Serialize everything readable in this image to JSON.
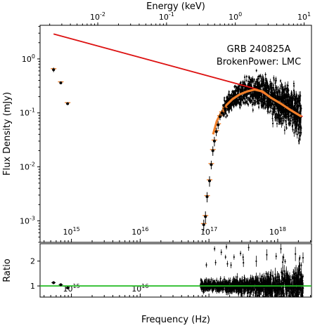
{
  "chart_data": [
    {
      "type": "scatter",
      "annotation": [
        "GRB 240825A",
        "BrokenPower: LMC"
      ],
      "xlabel": "",
      "ylabel": "Flux Density (mJy)",
      "top_xlabel": "Energy (keV)",
      "x_scale": "log",
      "y_scale": "log",
      "xlim": [
        350000000000000.0,
        3.1e+18
      ],
      "ylim": [
        0.0004,
        4.2
      ],
      "top_xlim": [
        0.00145,
        12.8
      ],
      "x_ticks": [
        {
          "value": 1000000000000000.0,
          "label": "10^15"
        },
        {
          "value": 1e+16,
          "label": "10^16"
        },
        {
          "value": 1e+17,
          "label": "10^17"
        },
        {
          "value": 1e+18,
          "label": "10^18"
        }
      ],
      "y_ticks": [
        {
          "value": 0.001,
          "label": "10^-3"
        },
        {
          "value": 0.01,
          "label": "10^-2"
        },
        {
          "value": 0.1,
          "label": "10^-1"
        },
        {
          "value": 1,
          "label": "10^0"
        }
      ],
      "top_x_ticks": [
        {
          "value": 0.01,
          "label": "10^-2"
        },
        {
          "value": 0.1,
          "label": "10^-1"
        },
        {
          "value": 1,
          "label": "10^0"
        },
        {
          "value": 10,
          "label": "10^1"
        }
      ],
      "grid": false,
      "legend": "none",
      "series": [
        {
          "kind": "line",
          "color": "#dd1111",
          "x": [
            550000000000000.0,
            5e+17,
            2.3e+18
          ],
          "y": [
            2.9,
            0.275,
            0.085
          ]
        },
        {
          "kind": "line",
          "color": "#f07f2a",
          "x": [
            1.15e+17,
            1.3e+17,
            1.5e+17,
            1.8e+17,
            2.2e+17,
            2.8e+17,
            3.6e+17,
            4.6e+17,
            6e+17,
            8e+17,
            1.1e+18,
            1.5e+18,
            2.2e+18
          ],
          "y": [
            0.04,
            0.07,
            0.1,
            0.14,
            0.18,
            0.22,
            0.25,
            0.27,
            0.25,
            0.19,
            0.15,
            0.115,
            0.086
          ]
        },
        {
          "kind": "points_with_errors",
          "color": "#000000",
          "model_color": "#f07f2a",
          "x": [
            550000000000000.0,
            700000000000000.0,
            880000000000000.0,
            8.4e+16,
            8.9e+16,
            9.4e+16,
            1.02e+17,
            1.08e+17,
            1.14e+17,
            1.2e+17,
            1.28e+17,
            1.36e+17,
            1.45e+17,
            1.55e+17,
            1.7e+17
          ],
          "y": [
            0.63,
            0.36,
            0.148,
            0.00085,
            0.0012,
            0.0028,
            0.0055,
            0.011,
            0.02,
            0.03,
            0.045,
            0.06,
            0.085,
            0.1,
            0.12
          ],
          "yerr": [
            0.06,
            0.02,
            0.008,
            0.0002,
            0.0003,
            0.0006,
            0.0012,
            0.002,
            0.004,
            0.006,
            0.008,
            0.01,
            0.012,
            0.014,
            0.016
          ]
        }
      ]
    },
    {
      "type": "scatter",
      "xlabel": "Frequency (Hz)",
      "ylabel": "Ratio",
      "x_scale": "log",
      "xlim": [
        350000000000000.0,
        3.1e+18
      ],
      "ylim": [
        0.55,
        2.7
      ],
      "x_ticks": [
        {
          "value": 1000000000000000.0,
          "label": "10^15"
        },
        {
          "value": 1e+16,
          "label": "10^16"
        },
        {
          "value": 1e+17,
          "label": "10^17"
        },
        {
          "value": 1e+18,
          "label": "10^18"
        }
      ],
      "y_ticks": [
        {
          "value": 1,
          "label": "1"
        },
        {
          "value": 2,
          "label": "2"
        }
      ],
      "reference_line": {
        "y": 1,
        "color": "#22bb22"
      },
      "grid": false,
      "legend": "none",
      "series": [
        {
          "kind": "points_with_errors",
          "color": "#000000",
          "x": [
            550000000000000.0,
            700000000000000.0,
            880000000000000.0
          ],
          "y": [
            1.13,
            1.05,
            0.92
          ],
          "yerr": [
            0.06,
            0.04,
            0.04
          ]
        }
      ]
    }
  ]
}
